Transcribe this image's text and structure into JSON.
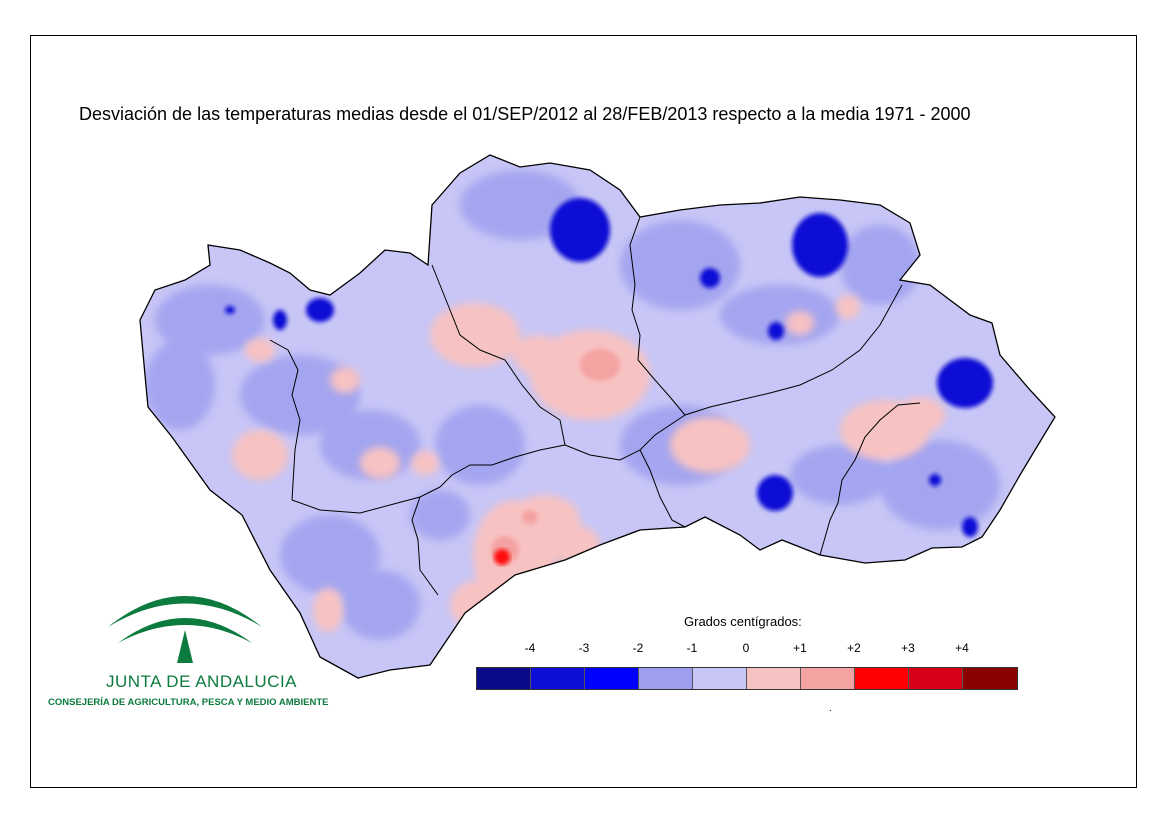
{
  "title": "Desviación de las temperaturas medias desde el 01/SEP/2012 al 28/FEB/2013 respecto a la media 1971 - 2000",
  "map": {
    "region": "Andalucía",
    "base_fill": "#c8c6f6",
    "boundary_color": "#000000"
  },
  "logo": {
    "name": "JUNTA DE ANDALUCIA",
    "subtitle": "CONSEJERÍA DE AGRICULTURA, PESCA Y MEDIO AMBIENTE",
    "color": "#0d7a3e"
  },
  "legend": {
    "title": "Grados centígrados:",
    "ticks": [
      "-4",
      "-3",
      "-2",
      "-1",
      "0",
      "+1",
      "+2",
      "+3",
      "+4"
    ],
    "colors": [
      "#0a0a8a",
      "#0e0ed6",
      "#0000ff",
      "#9d9ef0",
      "#c8c6f6",
      "#f7c2c2",
      "#f5a2a2",
      "#ff0000",
      "#d80018",
      "#8b0000"
    ],
    "footnote": "."
  }
}
